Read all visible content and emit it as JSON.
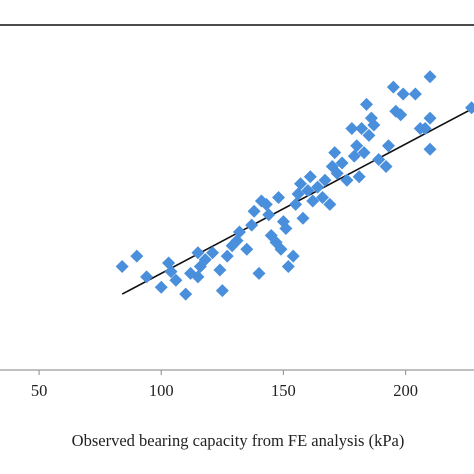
{
  "chart_data": {
    "type": "scatter",
    "title": "",
    "xlabel": "Observed bearing capacity from FE analysis (kPa)",
    "ylabel": "",
    "xlim": [
      34,
      228
    ],
    "ylim": [
      0,
      200
    ],
    "x_ticks": [
      {
        "value": 50,
        "label": "50"
      },
      {
        "value": 100,
        "label": "100"
      },
      {
        "value": 150,
        "label": "150"
      },
      {
        "value": 200,
        "label": "200"
      }
    ],
    "grid": false,
    "legend": "none",
    "series": [
      {
        "marker": "diamond",
        "color": "#4a8fdc",
        "points": [
          [
            84,
            60
          ],
          [
            90,
            66
          ],
          [
            94,
            54
          ],
          [
            100,
            48
          ],
          [
            103,
            62
          ],
          [
            104,
            57
          ],
          [
            106,
            52
          ],
          [
            110,
            44
          ],
          [
            112,
            56
          ],
          [
            115,
            54
          ],
          [
            115,
            68
          ],
          [
            116,
            60
          ],
          [
            118,
            64
          ],
          [
            121,
            68
          ],
          [
            124,
            58
          ],
          [
            125,
            46
          ],
          [
            127,
            66
          ],
          [
            129,
            72
          ],
          [
            131,
            75
          ],
          [
            132,
            80
          ],
          [
            135,
            70
          ],
          [
            137,
            84
          ],
          [
            138,
            92
          ],
          [
            140,
            56
          ],
          [
            141,
            98
          ],
          [
            143,
            96
          ],
          [
            144,
            90
          ],
          [
            145,
            78
          ],
          [
            147,
            74
          ],
          [
            148,
            100
          ],
          [
            149,
            70
          ],
          [
            150,
            86
          ],
          [
            151,
            82
          ],
          [
            152,
            60
          ],
          [
            154,
            66
          ],
          [
            155,
            96
          ],
          [
            156,
            102
          ],
          [
            157,
            108
          ],
          [
            158,
            88
          ],
          [
            160,
            104
          ],
          [
            161,
            112
          ],
          [
            162,
            98
          ],
          [
            164,
            106
          ],
          [
            166,
            100
          ],
          [
            167,
            110
          ],
          [
            169,
            96
          ],
          [
            170,
            118
          ],
          [
            171,
            126
          ],
          [
            172,
            114
          ],
          [
            174,
            120
          ],
          [
            176,
            110
          ],
          [
            178,
            140
          ],
          [
            179,
            124
          ],
          [
            180,
            130
          ],
          [
            181,
            112
          ],
          [
            182,
            140
          ],
          [
            183,
            126
          ],
          [
            184,
            154
          ],
          [
            185,
            136
          ],
          [
            186,
            146
          ],
          [
            187,
            142
          ],
          [
            189,
            122
          ],
          [
            192,
            118
          ],
          [
            193,
            130
          ],
          [
            195,
            164
          ],
          [
            196,
            150
          ],
          [
            198,
            148
          ],
          [
            199,
            160
          ],
          [
            204,
            160
          ],
          [
            206,
            140
          ],
          [
            208,
            140
          ],
          [
            210,
            146
          ],
          [
            210,
            128
          ],
          [
            210,
            170
          ],
          [
            227,
            152
          ]
        ]
      },
      {
        "kind": "trendline",
        "color": "#111111",
        "points": [
          [
            84,
            44
          ],
          [
            228,
            152
          ]
        ]
      }
    ]
  }
}
